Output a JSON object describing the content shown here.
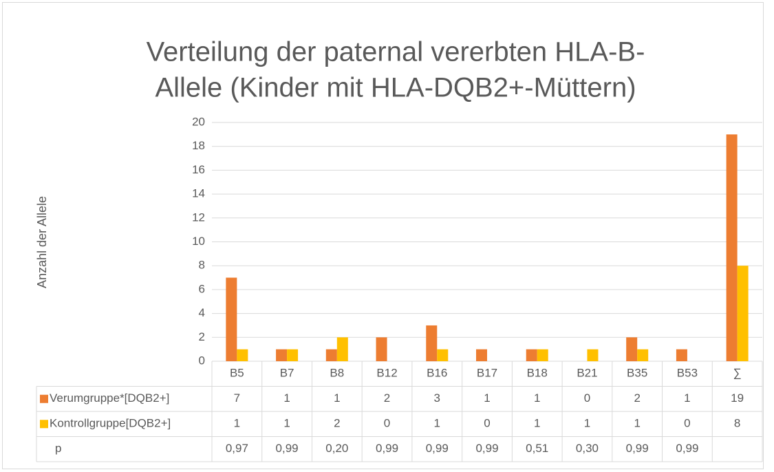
{
  "chart_data": {
    "type": "bar",
    "title_lines": [
      "Verteilung der paternal vererbten HLA-B-",
      "Allele (Kinder mit HLA-DQB2+-Müttern)"
    ],
    "y_label": "Anzahl der Allele",
    "categories": [
      "B5",
      "B7",
      "B8",
      "B12",
      "B16",
      "B17",
      "B18",
      "B21",
      "B35",
      "B53",
      "∑"
    ],
    "series": [
      {
        "name": "Verumgruppe*[DQB2+]",
        "color": "#ED7D31",
        "values": [
          7,
          1,
          1,
          2,
          3,
          1,
          1,
          0,
          2,
          1,
          19
        ]
      },
      {
        "name": "Kontrollgruppe[DQB2+]",
        "color": "#FFC000",
        "values": [
          1,
          1,
          2,
          0,
          1,
          0,
          1,
          1,
          1,
          0,
          8
        ]
      }
    ],
    "p_row": {
      "name": "p",
      "labels": [
        "0,97",
        "0,99",
        "0,20",
        "0,99",
        "0,99",
        "0,99",
        "0,51",
        "0,30",
        "0,99",
        "0,99",
        null
      ]
    },
    "ylim": [
      0,
      20
    ],
    "yticks": [
      0,
      2,
      4,
      6,
      8,
      10,
      12,
      14,
      16,
      18,
      20
    ],
    "grid": true
  }
}
